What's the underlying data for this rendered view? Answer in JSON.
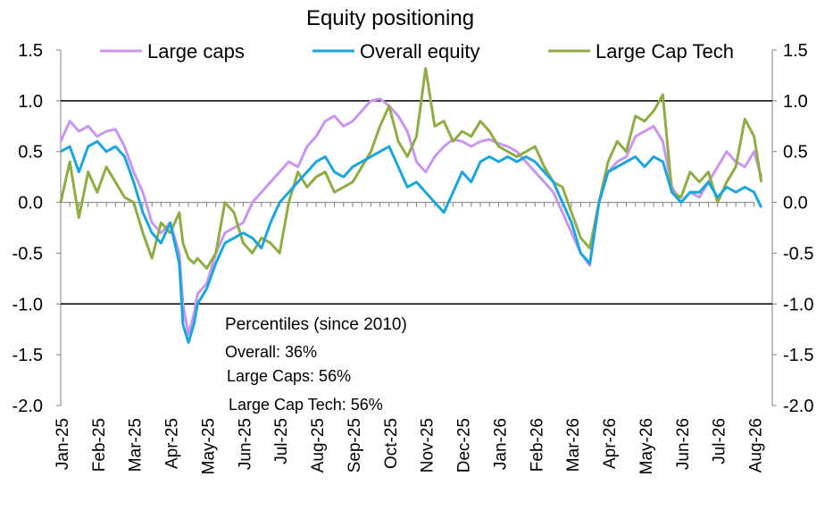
{
  "chart_data": {
    "type": "line",
    "title": "Equity positioning",
    "xlabel": "",
    "ylabel": "",
    "ylim": [
      -2.0,
      1.5
    ],
    "yticks": [
      "1.5",
      "1.0",
      "0.5",
      "0.0",
      "-0.5",
      "-1.0",
      "-1.5",
      "-2.0"
    ],
    "ytick_values": [
      1.5,
      1.0,
      0.5,
      0.0,
      -0.5,
      -1.0,
      -1.5,
      -2.0
    ],
    "xticks": [
      "Jan-25",
      "Feb-25",
      "Mar-25",
      "Apr-25",
      "May-25",
      "Jun-25",
      "Jul-25",
      "Aug-25",
      "Sep-25",
      "Oct-25",
      "Nov-25",
      "Dec-25",
      "Jan-26",
      "Feb-26",
      "Mar-26",
      "Apr-26",
      "May-26",
      "Jun-26",
      "Jul-26",
      "Aug-26"
    ],
    "x_range": [
      0,
      19.5
    ],
    "reference_lines": [
      1.0,
      -1.0
    ],
    "legend_position": "top",
    "grid": false,
    "annotations": {
      "heading": "Percentiles (since 2010)",
      "lines": [
        "Overall: 36%",
        "Large Caps: 56%",
        "Large Cap Tech: 56%"
      ]
    },
    "series": [
      {
        "name": "Large caps",
        "color": "#c896f0",
        "x": [
          0,
          0.25,
          0.5,
          0.75,
          1,
          1.25,
          1.5,
          1.75,
          2,
          2.25,
          2.5,
          2.75,
          3,
          3.25,
          3.35,
          3.5,
          3.65,
          3.75,
          4,
          4.25,
          4.5,
          4.75,
          5,
          5.25,
          5.5,
          5.75,
          6,
          6.25,
          6.5,
          6.75,
          7,
          7.25,
          7.5,
          7.75,
          8,
          8.25,
          8.5,
          8.75,
          9,
          9.25,
          9.5,
          9.75,
          10,
          10.25,
          10.5,
          10.75,
          11,
          11.25,
          11.5,
          11.75,
          12,
          12.25,
          12.5,
          12.75,
          13,
          13.25,
          13.5,
          13.75,
          14,
          14.25,
          14.5,
          14.75,
          15,
          15.25,
          15.5,
          15.75,
          16,
          16.25,
          16.5,
          16.75,
          17,
          17.25,
          17.5,
          17.75,
          18,
          18.25,
          18.5,
          18.75,
          19,
          19.2
        ],
        "y": [
          0.6,
          0.8,
          0.7,
          0.75,
          0.65,
          0.7,
          0.72,
          0.55,
          0.3,
          0.1,
          -0.2,
          -0.3,
          -0.2,
          -0.5,
          -1.0,
          -1.3,
          -1.1,
          -0.9,
          -0.8,
          -0.5,
          -0.3,
          -0.25,
          -0.2,
          0.0,
          0.1,
          0.2,
          0.3,
          0.4,
          0.35,
          0.55,
          0.65,
          0.8,
          0.85,
          0.75,
          0.8,
          0.9,
          1.0,
          1.02,
          0.95,
          0.85,
          0.7,
          0.4,
          0.3,
          0.45,
          0.55,
          0.62,
          0.6,
          0.55,
          0.6,
          0.62,
          0.58,
          0.55,
          0.5,
          0.4,
          0.3,
          0.2,
          0.1,
          -0.1,
          -0.3,
          -0.5,
          -0.62,
          0.0,
          0.3,
          0.4,
          0.45,
          0.65,
          0.7,
          0.75,
          0.6,
          0.15,
          0.0,
          0.1,
          0.05,
          0.2,
          0.35,
          0.5,
          0.4,
          0.35,
          0.5,
          0.25
        ]
      },
      {
        "name": "Overall equity",
        "color": "#1aa6dc",
        "x": [
          0,
          0.25,
          0.5,
          0.75,
          1,
          1.25,
          1.5,
          1.75,
          2,
          2.25,
          2.5,
          2.75,
          3,
          3.25,
          3.35,
          3.5,
          3.65,
          3.75,
          4,
          4.25,
          4.5,
          4.75,
          5,
          5.25,
          5.5,
          5.75,
          6,
          6.25,
          6.5,
          6.75,
          7,
          7.25,
          7.5,
          7.75,
          8,
          8.25,
          8.5,
          8.75,
          9,
          9.25,
          9.5,
          9.75,
          10,
          10.25,
          10.5,
          10.75,
          11,
          11.25,
          11.5,
          11.75,
          12,
          12.25,
          12.5,
          12.75,
          13,
          13.25,
          13.5,
          13.75,
          14,
          14.25,
          14.5,
          14.75,
          15,
          15.25,
          15.5,
          15.75,
          16,
          16.25,
          16.5,
          16.75,
          17,
          17.25,
          17.5,
          17.75,
          18,
          18.25,
          18.5,
          18.75,
          19,
          19.2
        ],
        "y": [
          0.5,
          0.55,
          0.3,
          0.55,
          0.6,
          0.5,
          0.55,
          0.45,
          0.2,
          -0.1,
          -0.3,
          -0.4,
          -0.2,
          -0.6,
          -1.2,
          -1.38,
          -1.2,
          -1.0,
          -0.85,
          -0.6,
          -0.4,
          -0.35,
          -0.3,
          -0.35,
          -0.45,
          -0.2,
          0.0,
          0.1,
          0.2,
          0.3,
          0.4,
          0.45,
          0.3,
          0.25,
          0.35,
          0.4,
          0.45,
          0.5,
          0.55,
          0.35,
          0.15,
          0.2,
          0.1,
          0.0,
          -0.1,
          0.1,
          0.3,
          0.2,
          0.4,
          0.45,
          0.4,
          0.45,
          0.4,
          0.45,
          0.4,
          0.3,
          0.2,
          0.0,
          -0.2,
          -0.5,
          -0.6,
          0.0,
          0.3,
          0.35,
          0.4,
          0.45,
          0.35,
          0.45,
          0.4,
          0.1,
          0.0,
          0.1,
          0.1,
          0.2,
          0.05,
          0.15,
          0.1,
          0.15,
          0.1,
          -0.05
        ]
      },
      {
        "name": "Large Cap Tech",
        "color": "#8fac45",
        "x": [
          0,
          0.25,
          0.5,
          0.75,
          1,
          1.25,
          1.5,
          1.75,
          2,
          2.25,
          2.5,
          2.75,
          3,
          3.25,
          3.35,
          3.5,
          3.65,
          3.75,
          4,
          4.25,
          4.5,
          4.75,
          5,
          5.25,
          5.5,
          5.75,
          6,
          6.25,
          6.5,
          6.75,
          7,
          7.25,
          7.5,
          7.75,
          8,
          8.25,
          8.5,
          8.75,
          9,
          9.25,
          9.5,
          9.75,
          10,
          10.25,
          10.5,
          10.75,
          11,
          11.25,
          11.5,
          11.75,
          12,
          12.25,
          12.5,
          12.75,
          13,
          13.25,
          13.5,
          13.75,
          14,
          14.25,
          14.5,
          14.75,
          15,
          15.25,
          15.5,
          15.75,
          16,
          16.25,
          16.5,
          16.75,
          17,
          17.25,
          17.5,
          17.75,
          18,
          18.25,
          18.5,
          18.75,
          19,
          19.2
        ],
        "y": [
          0.0,
          0.4,
          -0.15,
          0.3,
          0.1,
          0.35,
          0.2,
          0.05,
          0.0,
          -0.3,
          -0.55,
          -0.2,
          -0.3,
          -0.1,
          -0.4,
          -0.55,
          -0.6,
          -0.55,
          -0.65,
          -0.5,
          0.0,
          -0.1,
          -0.4,
          -0.5,
          -0.35,
          -0.4,
          -0.5,
          0.0,
          0.3,
          0.15,
          0.25,
          0.3,
          0.1,
          0.15,
          0.2,
          0.35,
          0.5,
          0.75,
          0.95,
          0.6,
          0.45,
          0.65,
          1.32,
          0.75,
          0.8,
          0.6,
          0.7,
          0.65,
          0.8,
          0.7,
          0.55,
          0.5,
          0.45,
          0.5,
          0.55,
          0.35,
          0.2,
          0.15,
          -0.1,
          -0.35,
          -0.45,
          0.0,
          0.4,
          0.6,
          0.5,
          0.85,
          0.8,
          0.9,
          1.06,
          0.1,
          0.05,
          0.3,
          0.2,
          0.3,
          0.0,
          0.2,
          0.35,
          0.82,
          0.65,
          0.2
        ]
      }
    ]
  }
}
